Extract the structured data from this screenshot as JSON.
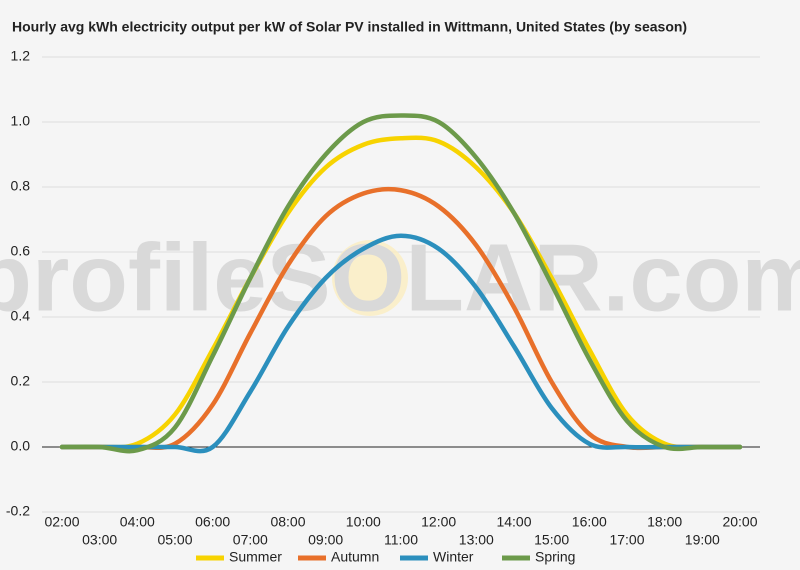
{
  "chart_data": {
    "type": "line",
    "title": "Hourly avg kWh electricity output per kW of Solar PV installed in Wittmann, United States (by season)",
    "watermark": "profileSOLAR.com",
    "categories": [
      "02:00",
      "03:00",
      "04:00",
      "05:00",
      "06:00",
      "07:00",
      "08:00",
      "09:00",
      "10:00",
      "11:00",
      "12:00",
      "13:00",
      "14:00",
      "15:00",
      "16:00",
      "17:00",
      "18:00",
      "19:00",
      "20:00"
    ],
    "series": [
      {
        "name": "Summer",
        "color": "#f7d300",
        "values": [
          0,
          0,
          0.01,
          0.1,
          0.3,
          0.52,
          0.72,
          0.86,
          0.93,
          0.95,
          0.94,
          0.86,
          0.72,
          0.52,
          0.3,
          0.1,
          0.01,
          0,
          0
        ]
      },
      {
        "name": "Autumn",
        "color": "#e8702a",
        "values": [
          0,
          0,
          0,
          0.01,
          0.13,
          0.35,
          0.56,
          0.71,
          0.78,
          0.79,
          0.74,
          0.62,
          0.43,
          0.2,
          0.04,
          0,
          0,
          0,
          0
        ]
      },
      {
        "name": "Winter",
        "color": "#2b8fbd",
        "values": [
          0,
          0,
          0,
          0,
          0,
          0.17,
          0.37,
          0.52,
          0.61,
          0.65,
          0.61,
          0.49,
          0.31,
          0.12,
          0.01,
          0,
          0,
          0,
          0
        ]
      },
      {
        "name": "Spring",
        "color": "#6c9a4a",
        "values": [
          0,
          0,
          -0.01,
          0.06,
          0.28,
          0.52,
          0.74,
          0.9,
          1.0,
          1.02,
          1.0,
          0.89,
          0.72,
          0.5,
          0.27,
          0.08,
          0,
          0,
          0
        ]
      }
    ],
    "ylim": [
      -0.2,
      1.2
    ],
    "yticks": [
      {
        "value": -0.2,
        "label": "-0.2"
      },
      {
        "value": 0,
        "label": "0.0"
      },
      {
        "value": 0.2,
        "label": "0.2"
      },
      {
        "value": 0.4,
        "label": "0.4"
      },
      {
        "value": 0.6,
        "label": "0.6"
      },
      {
        "value": 0.8,
        "label": "0.8"
      },
      {
        "value": 1,
        "label": "1.0"
      },
      {
        "value": 1.2,
        "label": "1.2"
      }
    ],
    "grid": true
  }
}
